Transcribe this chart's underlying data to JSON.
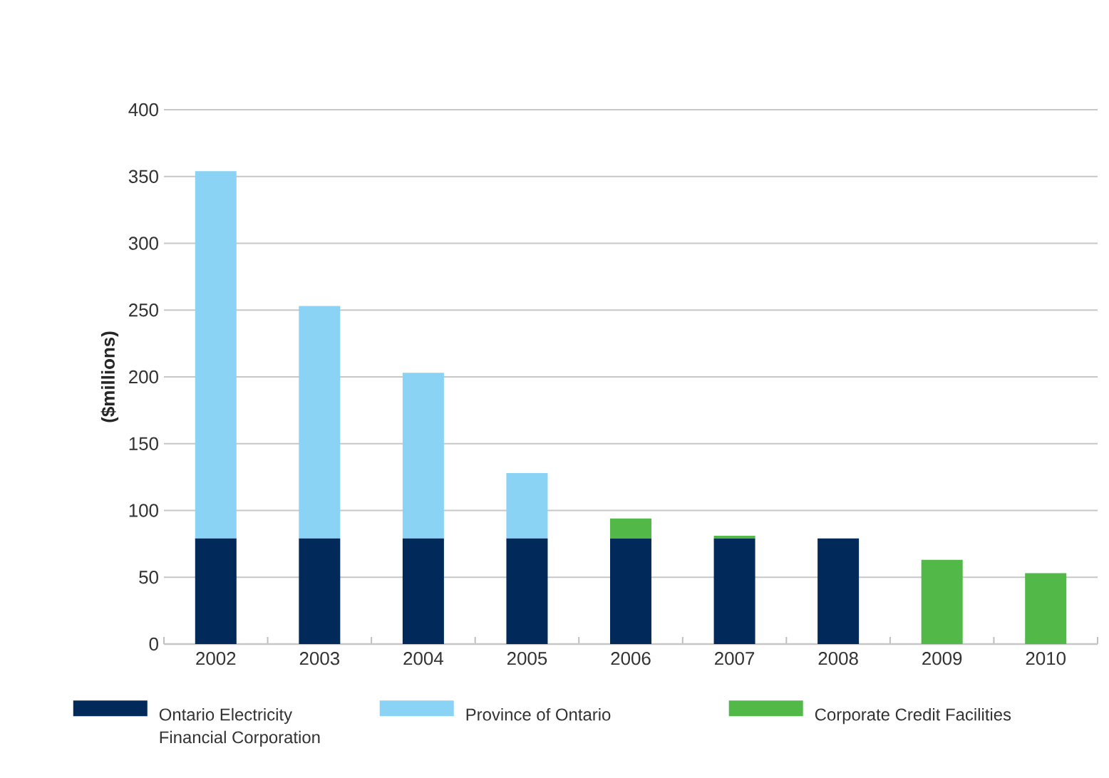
{
  "chart_data": {
    "type": "bar",
    "stacked": true,
    "ylabel": "($millions)",
    "categories": [
      "2002",
      "2003",
      "2004",
      "2005",
      "2006",
      "2007",
      "2008",
      "2009",
      "2010"
    ],
    "series": [
      {
        "name": "Ontario Electricity Financial Corporation",
        "color": "#012a5a",
        "values": [
          79,
          79,
          79,
          79,
          79,
          79,
          79,
          null,
          null
        ]
      },
      {
        "name": "Province of Ontario",
        "color": "#8ad3f4",
        "values": [
          275,
          174,
          124,
          49,
          null,
          null,
          null,
          null,
          null
        ]
      },
      {
        "name": "Corporate Credit Facilities",
        "color": "#52b848",
        "values": [
          null,
          null,
          null,
          null,
          15,
          2,
          null,
          63,
          53
        ]
      }
    ],
    "ylim": [
      0,
      400
    ],
    "yticks": [
      0,
      50,
      100,
      150,
      200,
      250,
      300,
      350,
      400
    ],
    "grid": "y",
    "legend": "bottom"
  }
}
